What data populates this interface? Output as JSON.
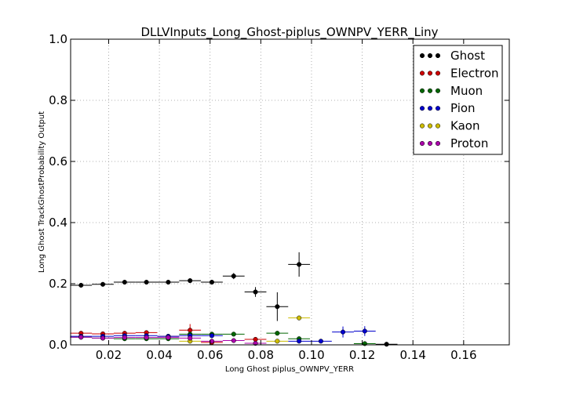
{
  "chart_data": {
    "type": "scatter",
    "title": "DLLVInputs_Long_Ghost-piplus_OWNPV_YERR_Liny",
    "xlabel": "Long Ghost piplus_OWNPV_YERR",
    "ylabel": "Long Ghost TrackGhostProbability Output",
    "xlim": [
      0.005,
      0.178
    ],
    "ylim": [
      0.0,
      1.0
    ],
    "grid": true,
    "legend_position": "top-right",
    "x_ticks": [
      {
        "value": 0.02,
        "label": "0.02"
      },
      {
        "value": 0.04,
        "label": "0.04"
      },
      {
        "value": 0.06,
        "label": "0.06"
      },
      {
        "value": 0.08,
        "label": "0.08"
      },
      {
        "value": 0.1,
        "label": "0.10"
      },
      {
        "value": 0.12,
        "label": "0.12"
      },
      {
        "value": 0.14,
        "label": "0.14"
      },
      {
        "value": 0.16,
        "label": "0.16"
      }
    ],
    "y_ticks": [
      {
        "value": 0.0,
        "label": "0.0"
      },
      {
        "value": 0.2,
        "label": "0.2"
      },
      {
        "value": 0.4,
        "label": "0.4"
      },
      {
        "value": 0.6,
        "label": "0.6"
      },
      {
        "value": 0.8,
        "label": "0.8"
      },
      {
        "value": 1.0,
        "label": "1.0"
      }
    ],
    "series": [
      {
        "name": "Ghost",
        "color": "#000000",
        "points": [
          {
            "x": 0.0091,
            "y": 0.195,
            "xerr": 0.0043,
            "yerr": 0.003
          },
          {
            "x": 0.0177,
            "y": 0.198,
            "xerr": 0.0043,
            "yerr": 0.003
          },
          {
            "x": 0.0263,
            "y": 0.205,
            "xerr": 0.0043,
            "yerr": 0.003
          },
          {
            "x": 0.0349,
            "y": 0.205,
            "xerr": 0.0043,
            "yerr": 0.003
          },
          {
            "x": 0.0435,
            "y": 0.205,
            "xerr": 0.0043,
            "yerr": 0.003
          },
          {
            "x": 0.0521,
            "y": 0.21,
            "xerr": 0.0043,
            "yerr": 0.004
          },
          {
            "x": 0.0607,
            "y": 0.205,
            "xerr": 0.0043,
            "yerr": 0.004
          },
          {
            "x": 0.0693,
            "y": 0.225,
            "xerr": 0.0043,
            "yerr": 0.01
          },
          {
            "x": 0.0779,
            "y": 0.173,
            "xerr": 0.0043,
            "yerr": 0.016
          },
          {
            "x": 0.0865,
            "y": 0.125,
            "xerr": 0.0043,
            "yerr": 0.047
          },
          {
            "x": 0.0951,
            "y": 0.263,
            "xerr": 0.0043,
            "yerr": 0.04
          },
          {
            "x": 0.1296,
            "y": 0.002,
            "xerr": 0.0043,
            "yerr": 0.002
          }
        ]
      },
      {
        "name": "Electron",
        "color": "#cc0000",
        "points": [
          {
            "x": 0.0091,
            "y": 0.038,
            "xerr": 0.0043,
            "yerr": 0.004
          },
          {
            "x": 0.0177,
            "y": 0.036,
            "xerr": 0.0043,
            "yerr": 0.004
          },
          {
            "x": 0.0263,
            "y": 0.038,
            "xerr": 0.0043,
            "yerr": 0.004
          },
          {
            "x": 0.0349,
            "y": 0.04,
            "xerr": 0.0043,
            "yerr": 0.005
          },
          {
            "x": 0.0435,
            "y": 0.028,
            "xerr": 0.0043,
            "yerr": 0.005
          },
          {
            "x": 0.0521,
            "y": 0.048,
            "xerr": 0.0043,
            "yerr": 0.02
          },
          {
            "x": 0.0607,
            "y": 0.008,
            "xerr": 0.0043,
            "yerr": 0.006
          },
          {
            "x": 0.0779,
            "y": 0.018,
            "xerr": 0.0043,
            "yerr": 0.005
          }
        ]
      },
      {
        "name": "Muon",
        "color": "#006600",
        "points": [
          {
            "x": 0.0091,
            "y": 0.025,
            "xerr": 0.0043,
            "yerr": 0.003
          },
          {
            "x": 0.0177,
            "y": 0.022,
            "xerr": 0.0043,
            "yerr": 0.003
          },
          {
            "x": 0.0263,
            "y": 0.02,
            "xerr": 0.0043,
            "yerr": 0.003
          },
          {
            "x": 0.0349,
            "y": 0.02,
            "xerr": 0.0043,
            "yerr": 0.003
          },
          {
            "x": 0.0435,
            "y": 0.02,
            "xerr": 0.0043,
            "yerr": 0.003
          },
          {
            "x": 0.0521,
            "y": 0.035,
            "xerr": 0.0043,
            "yerr": 0.006
          },
          {
            "x": 0.0607,
            "y": 0.035,
            "xerr": 0.0043,
            "yerr": 0.006
          },
          {
            "x": 0.0693,
            "y": 0.035,
            "xerr": 0.0043,
            "yerr": 0.006
          },
          {
            "x": 0.0865,
            "y": 0.038,
            "xerr": 0.0043,
            "yerr": 0.005
          },
          {
            "x": 0.0951,
            "y": 0.02,
            "xerr": 0.0043,
            "yerr": 0.005
          },
          {
            "x": 0.121,
            "y": 0.004,
            "xerr": 0.0043,
            "yerr": 0.003
          }
        ]
      },
      {
        "name": "Pion",
        "color": "#0000cc",
        "points": [
          {
            "x": 0.0091,
            "y": 0.028,
            "xerr": 0.0043,
            "yerr": 0.003
          },
          {
            "x": 0.0177,
            "y": 0.028,
            "xerr": 0.0043,
            "yerr": 0.003
          },
          {
            "x": 0.0263,
            "y": 0.03,
            "xerr": 0.0043,
            "yerr": 0.003
          },
          {
            "x": 0.0349,
            "y": 0.03,
            "xerr": 0.0043,
            "yerr": 0.003
          },
          {
            "x": 0.0435,
            "y": 0.028,
            "xerr": 0.0043,
            "yerr": 0.003
          },
          {
            "x": 0.0521,
            "y": 0.03,
            "xerr": 0.0043,
            "yerr": 0.004
          },
          {
            "x": 0.0607,
            "y": 0.03,
            "xerr": 0.0043,
            "yerr": 0.004
          },
          {
            "x": 0.0951,
            "y": 0.012,
            "xerr": 0.0043,
            "yerr": 0.004
          },
          {
            "x": 0.1037,
            "y": 0.012,
            "xerr": 0.0043,
            "yerr": 0.003
          },
          {
            "x": 0.1124,
            "y": 0.042,
            "xerr": 0.0043,
            "yerr": 0.018
          },
          {
            "x": 0.121,
            "y": 0.045,
            "xerr": 0.0043,
            "yerr": 0.016
          }
        ]
      },
      {
        "name": "Kaon",
        "color": "#ccbb00",
        "points": [
          {
            "x": 0.0521,
            "y": 0.012,
            "xerr": 0.0043,
            "yerr": 0.004
          },
          {
            "x": 0.0865,
            "y": 0.012,
            "xerr": 0.0043,
            "yerr": 0.004
          },
          {
            "x": 0.0951,
            "y": 0.088,
            "xerr": 0.0043,
            "yerr": 0.004
          }
        ]
      },
      {
        "name": "Proton",
        "color": "#aa00aa",
        "points": [
          {
            "x": 0.0091,
            "y": 0.025,
            "xerr": 0.0043,
            "yerr": 0.003
          },
          {
            "x": 0.0177,
            "y": 0.022,
            "xerr": 0.0043,
            "yerr": 0.003
          },
          {
            "x": 0.0263,
            "y": 0.024,
            "xerr": 0.0043,
            "yerr": 0.003
          },
          {
            "x": 0.0349,
            "y": 0.024,
            "xerr": 0.0043,
            "yerr": 0.003
          },
          {
            "x": 0.0435,
            "y": 0.024,
            "xerr": 0.0043,
            "yerr": 0.003
          },
          {
            "x": 0.0521,
            "y": 0.022,
            "xerr": 0.0043,
            "yerr": 0.004
          },
          {
            "x": 0.0607,
            "y": 0.012,
            "xerr": 0.0043,
            "yerr": 0.004
          },
          {
            "x": 0.0693,
            "y": 0.014,
            "xerr": 0.0043,
            "yerr": 0.004
          },
          {
            "x": 0.0779,
            "y": 0.005,
            "xerr": 0.0043,
            "yerr": 0.003
          }
        ]
      }
    ]
  }
}
